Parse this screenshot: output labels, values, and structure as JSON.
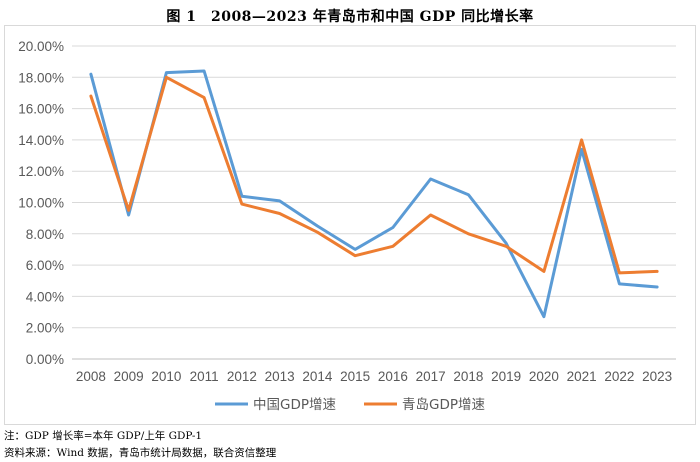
{
  "title": "图 1　2008—2023 年青岛市和中国 GDP 同比增长率",
  "notes": [
    "注：GDP 增长率=本年 GDP/上年 GDP-1",
    "资料来源：Wind 数据，青岛市统计局数据，联合资信整理"
  ],
  "chart_data": {
    "type": "line",
    "title": "图 1　2008—2023 年青岛市和中国 GDP 同比增长率",
    "x": [
      "2008",
      "2009",
      "2010",
      "2011",
      "2012",
      "2013",
      "2014",
      "2015",
      "2016",
      "2017",
      "2018",
      "2019",
      "2020",
      "2021",
      "2022",
      "2023"
    ],
    "series": [
      {
        "name": "中国GDP增速",
        "color": "#5b9bd5",
        "values": [
          18.2,
          9.2,
          18.3,
          18.4,
          10.4,
          10.1,
          8.5,
          7.0,
          8.4,
          11.5,
          10.5,
          7.4,
          2.7,
          13.4,
          4.8,
          4.6
        ]
      },
      {
        "name": "青岛GDP增速",
        "color": "#ed7d31",
        "values": [
          16.8,
          9.5,
          18.0,
          16.7,
          9.9,
          9.3,
          8.1,
          6.6,
          7.2,
          9.2,
          8.0,
          7.2,
          5.6,
          14.0,
          5.5,
          5.6
        ]
      }
    ],
    "y_ticks": [
      "0.00%",
      "2.00%",
      "4.00%",
      "6.00%",
      "8.00%",
      "10.00%",
      "12.00%",
      "14.00%",
      "16.00%",
      "18.00%",
      "20.00%"
    ],
    "ylim": [
      0,
      20
    ],
    "grid": true,
    "legend_position": "bottom"
  }
}
